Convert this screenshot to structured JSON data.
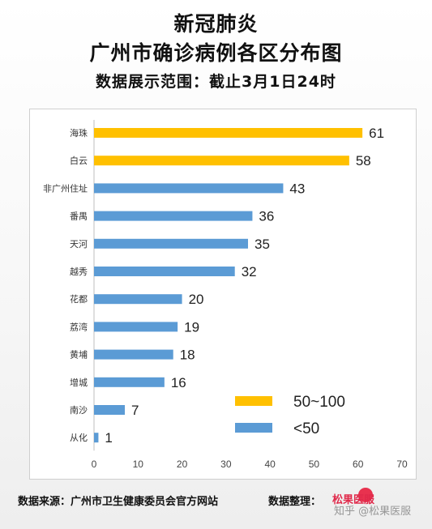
{
  "header": {
    "line1": "新冠肺炎",
    "line2": "广州市确诊病例各区分布图",
    "line3": "数据展示范围：截止3月1日24时"
  },
  "chart_data": {
    "type": "bar",
    "orientation": "horizontal",
    "categories": [
      "海珠",
      "白云",
      "非广州住址",
      "番禺",
      "天河",
      "越秀",
      "花都",
      "荔湾",
      "黄埔",
      "增城",
      "南沙",
      "从化"
    ],
    "values": [
      61,
      58,
      43,
      36,
      35,
      32,
      20,
      19,
      18,
      16,
      7,
      1
    ],
    "bar_colors": [
      "#FFC000",
      "#FFC000",
      "#5B9BD5",
      "#5B9BD5",
      "#5B9BD5",
      "#5B9BD5",
      "#5B9BD5",
      "#5B9BD5",
      "#5B9BD5",
      "#5B9BD5",
      "#5B9BD5",
      "#5B9BD5"
    ],
    "xlim": [
      0,
      70
    ],
    "xticks": [
      0,
      10,
      20,
      30,
      40,
      50,
      60,
      70
    ],
    "grid": false,
    "data_labels": true,
    "legend": {
      "placement": "bottom-right",
      "items": [
        {
          "label": "50~100",
          "color": "#FFC000"
        },
        {
          "label": "<50",
          "color": "#5B9BD5"
        }
      ]
    }
  },
  "footer": {
    "source": "数据来源：广州市卫生健康委员会官方网站",
    "org_label": "数据整理：",
    "logo_text": "松果医服",
    "watermark": "知乎 @松果医服"
  }
}
